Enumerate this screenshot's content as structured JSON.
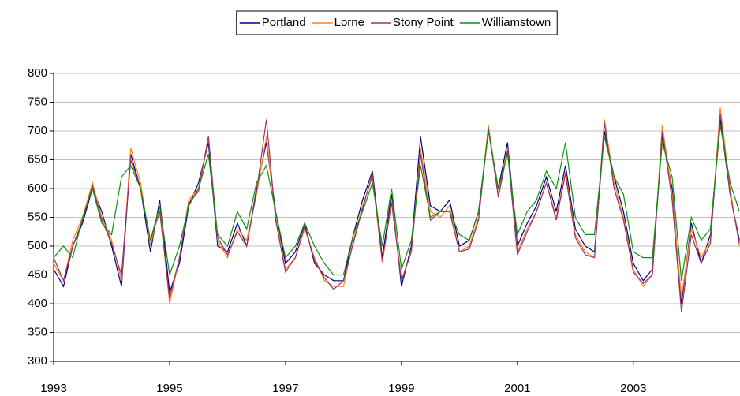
{
  "chart_data": {
    "type": "line",
    "x": [
      1993,
      1993.17,
      1993.33,
      1993.5,
      1993.67,
      1993.83,
      1994,
      1994.17,
      1994.33,
      1994.5,
      1994.67,
      1994.83,
      1995,
      1995.17,
      1995.33,
      1995.5,
      1995.67,
      1995.83,
      1996,
      1996.17,
      1996.33,
      1996.5,
      1996.67,
      1996.83,
      1997,
      1997.17,
      1997.33,
      1997.5,
      1997.67,
      1997.83,
      1998,
      1998.17,
      1998.33,
      1998.5,
      1998.67,
      1998.83,
      1999,
      1999.17,
      1999.33,
      1999.5,
      1999.67,
      1999.83,
      2000,
      2000.17,
      2000.33,
      2000.5,
      2000.67,
      2000.83,
      2001,
      2001.17,
      2001.33,
      2001.5,
      2001.67,
      2001.83,
      2002,
      2002.17,
      2002.33,
      2002.5,
      2002.67,
      2002.83,
      2003,
      2003.17,
      2003.33,
      2003.5,
      2003.67,
      2003.83,
      2004,
      2004.17,
      2004.33,
      2004.5,
      2004.67,
      2004.83
    ],
    "series": [
      {
        "name": "Portland",
        "color": "#000080",
        "values": [
          460,
          430,
          500,
          540,
          600,
          560,
          500,
          430,
          660,
          600,
          490,
          580,
          420,
          470,
          570,
          610,
          680,
          500,
          490,
          540,
          500,
          600,
          680,
          560,
          470,
          490,
          540,
          470,
          450,
          440,
          440,
          520,
          580,
          630,
          480,
          590,
          430,
          500,
          690,
          570,
          560,
          580,
          500,
          510,
          560,
          700,
          600,
          680,
          500,
          540,
          570,
          620,
          560,
          640,
          530,
          500,
          490,
          700,
          620,
          560,
          470,
          440,
          460,
          690,
          600,
          400,
          540,
          470,
          520,
          720,
          590,
          510
        ]
      },
      {
        "name": "Lorne",
        "color": "#ff8020",
        "values": [
          470,
          440,
          510,
          550,
          610,
          550,
          510,
          440,
          670,
          610,
          500,
          570,
          400,
          480,
          580,
          600,
          690,
          510,
          480,
          530,
          510,
          590,
          690,
          550,
          460,
          480,
          530,
          480,
          440,
          430,
          430,
          510,
          570,
          620,
          470,
          580,
          440,
          490,
          670,
          560,
          550,
          570,
          490,
          500,
          550,
          710,
          590,
          670,
          490,
          530,
          560,
          610,
          550,
          630,
          520,
          490,
          480,
          720,
          610,
          550,
          460,
          430,
          450,
          710,
          590,
          410,
          530,
          480,
          510,
          740,
          600,
          500
        ]
      },
      {
        "name": "Stony Point",
        "color": "#993366",
        "values": [
          480,
          440,
          500,
          545,
          605,
          545,
          505,
          450,
          650,
          600,
          510,
          560,
          410,
          480,
          575,
          595,
          690,
          515,
          485,
          525,
          500,
          595,
          720,
          545,
          455,
          480,
          535,
          475,
          445,
          425,
          440,
          505,
          565,
          625,
          475,
          575,
          440,
          490,
          660,
          545,
          560,
          560,
          490,
          495,
          545,
          705,
          585,
          665,
          485,
          525,
          560,
          610,
          545,
          625,
          515,
          485,
          480,
          715,
          600,
          545,
          455,
          435,
          450,
          700,
          580,
          385,
          520,
          470,
          505,
          730,
          590,
          505
        ]
      },
      {
        "name": "Williamstown",
        "color": "#109010",
        "values": [
          480,
          500,
          480,
          550,
          600,
          540,
          520,
          620,
          640,
          600,
          510,
          570,
          450,
          500,
          570,
          600,
          660,
          520,
          500,
          560,
          530,
          610,
          640,
          560,
          480,
          500,
          540,
          500,
          470,
          450,
          450,
          520,
          560,
          610,
          500,
          600,
          460,
          510,
          640,
          550,
          560,
          560,
          520,
          510,
          560,
          700,
          600,
          660,
          520,
          560,
          580,
          630,
          600,
          680,
          550,
          520,
          520,
          690,
          620,
          590,
          490,
          480,
          480,
          680,
          620,
          440,
          550,
          510,
          530,
          710,
          610,
          560
        ]
      }
    ],
    "xlim": [
      1993,
      2004.84
    ],
    "xticks": [
      1993,
      1995,
      1997,
      1999,
      2001,
      2003
    ],
    "ylim": [
      300,
      800
    ],
    "yticks": [
      300,
      350,
      400,
      450,
      500,
      550,
      600,
      650,
      700,
      750,
      800
    ],
    "grid": true,
    "legend": "top"
  }
}
